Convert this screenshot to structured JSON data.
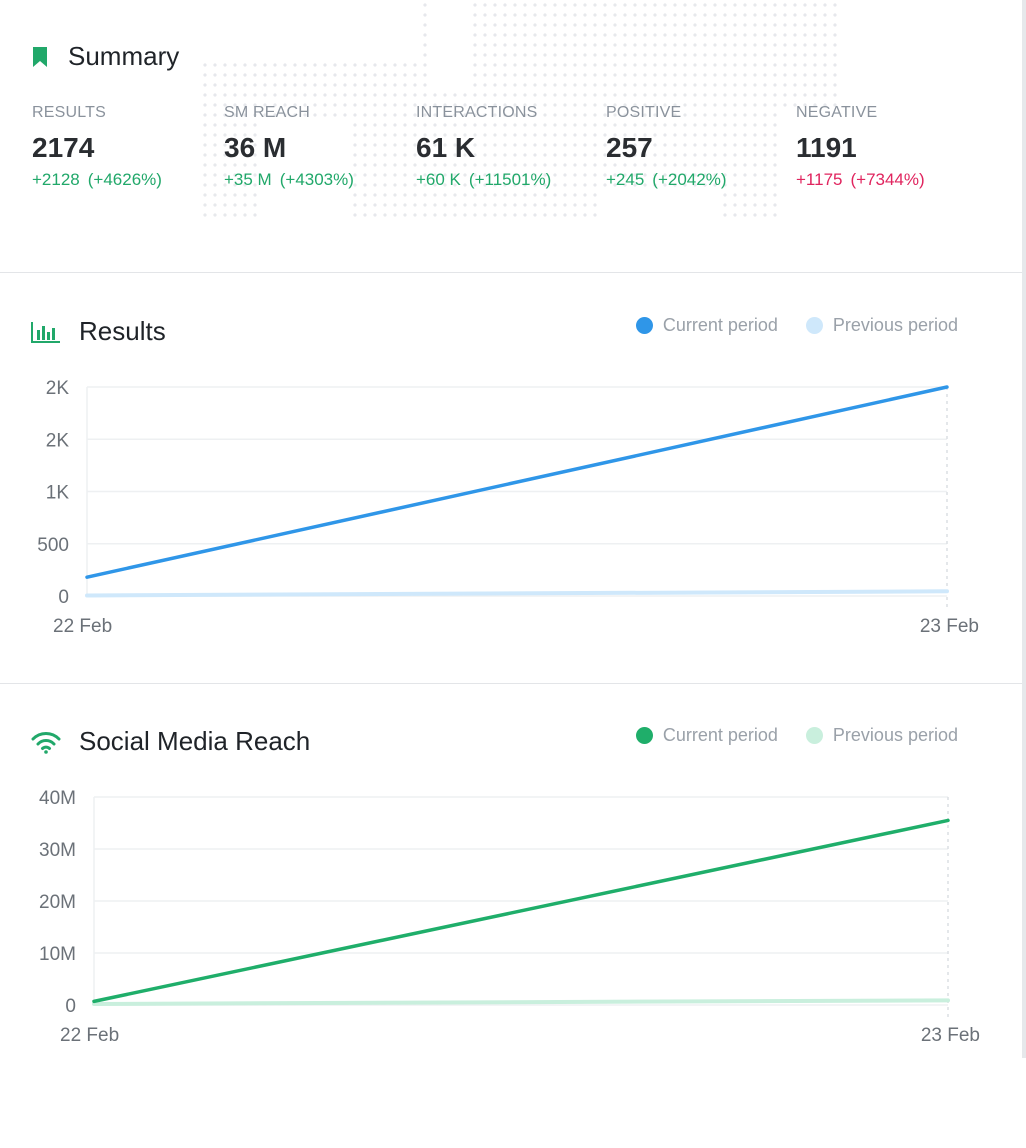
{
  "summary": {
    "title": "Summary",
    "icon": "bookmark-icon",
    "stats": [
      {
        "label": "RESULTS",
        "value": "2174",
        "change": "+2128",
        "pct": "(+4626%)",
        "trend": "positive"
      },
      {
        "label": "SM REACH",
        "value": "36 M",
        "change": "+35 M",
        "pct": "(+4303%)",
        "trend": "positive"
      },
      {
        "label": "INTERACTIONS",
        "value": "61 K",
        "change": "+60 K",
        "pct": "(+11501%)",
        "trend": "positive"
      },
      {
        "label": "POSITIVE",
        "value": "257",
        "change": "+245",
        "pct": "(+2042%)",
        "trend": "positive"
      },
      {
        "label": "NEGATIVE",
        "value": "1191",
        "change": "+1175",
        "pct": "(+7344%)",
        "trend": "negative"
      }
    ]
  },
  "colors": {
    "accent_green": "#21a86a",
    "negative_red": "#e0245e",
    "results_current": "#2f96e8",
    "results_previous": "#cfe8fb",
    "reach_current": "#1fae6a",
    "reach_previous": "#c9efdd"
  },
  "results_panel": {
    "title": "Results",
    "icon": "bar-chart-icon",
    "legend": {
      "current": "Current period",
      "previous": "Previous period"
    }
  },
  "reach_panel": {
    "title": "Social Media Reach",
    "icon": "wifi-icon",
    "legend": {
      "current": "Current period",
      "previous": "Previous period"
    }
  },
  "chart_data": [
    {
      "type": "line",
      "x": [
        "22 Feb",
        "23 Feb"
      ],
      "yticks": [
        "0",
        "500",
        "1K",
        "2K",
        "2K"
      ],
      "ylim": [
        0,
        2000
      ],
      "grid": true,
      "legend_placement": "top-right",
      "series": [
        {
          "name": "Current period",
          "values": [
            180,
            2000
          ]
        },
        {
          "name": "Previous period",
          "values": [
            5,
            45
          ]
        }
      ]
    },
    {
      "type": "line",
      "x": [
        "22 Feb",
        "23 Feb"
      ],
      "yticks": [
        "0",
        "10M",
        "20M",
        "30M",
        "40M"
      ],
      "ylim": [
        0,
        40000000
      ],
      "grid": true,
      "legend_placement": "top-right",
      "series": [
        {
          "name": "Current period",
          "values": [
            700000,
            35500000
          ]
        },
        {
          "name": "Previous period",
          "values": [
            200000,
            900000
          ]
        }
      ]
    }
  ]
}
